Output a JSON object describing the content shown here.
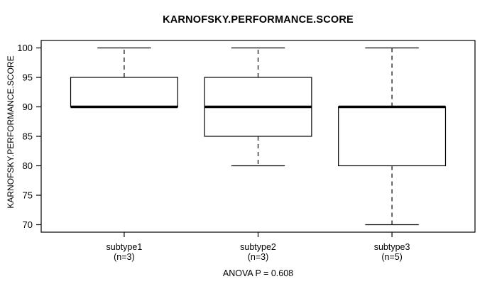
{
  "chart_data": {
    "type": "boxplot",
    "title": "KARNOFSKY.PERFORMANCE.SCORE",
    "ylabel": "KARNOFSKY.PERFORMANCE.SCORE",
    "footer": "ANOVA P = 0.608",
    "ylim": [
      70,
      100
    ],
    "yticks": [
      70,
      75,
      80,
      85,
      90,
      95,
      100
    ],
    "grid": false,
    "legend": "none",
    "groups": [
      {
        "label": "subtype1",
        "sublabel": "(n=3)",
        "min": 90,
        "q1": 90,
        "median": 90,
        "q3": 95,
        "max": 100
      },
      {
        "label": "subtype2",
        "sublabel": "(n=3)",
        "min": 80,
        "q1": 85,
        "median": 90,
        "q3": 95,
        "max": 100
      },
      {
        "label": "subtype3",
        "sublabel": "(n=5)",
        "min": 70,
        "q1": 80,
        "median": 90,
        "q3": 90,
        "max": 100
      }
    ],
    "colors": {
      "line": "#000000",
      "box_fill": "#ffffff",
      "background": "#ffffff"
    }
  }
}
